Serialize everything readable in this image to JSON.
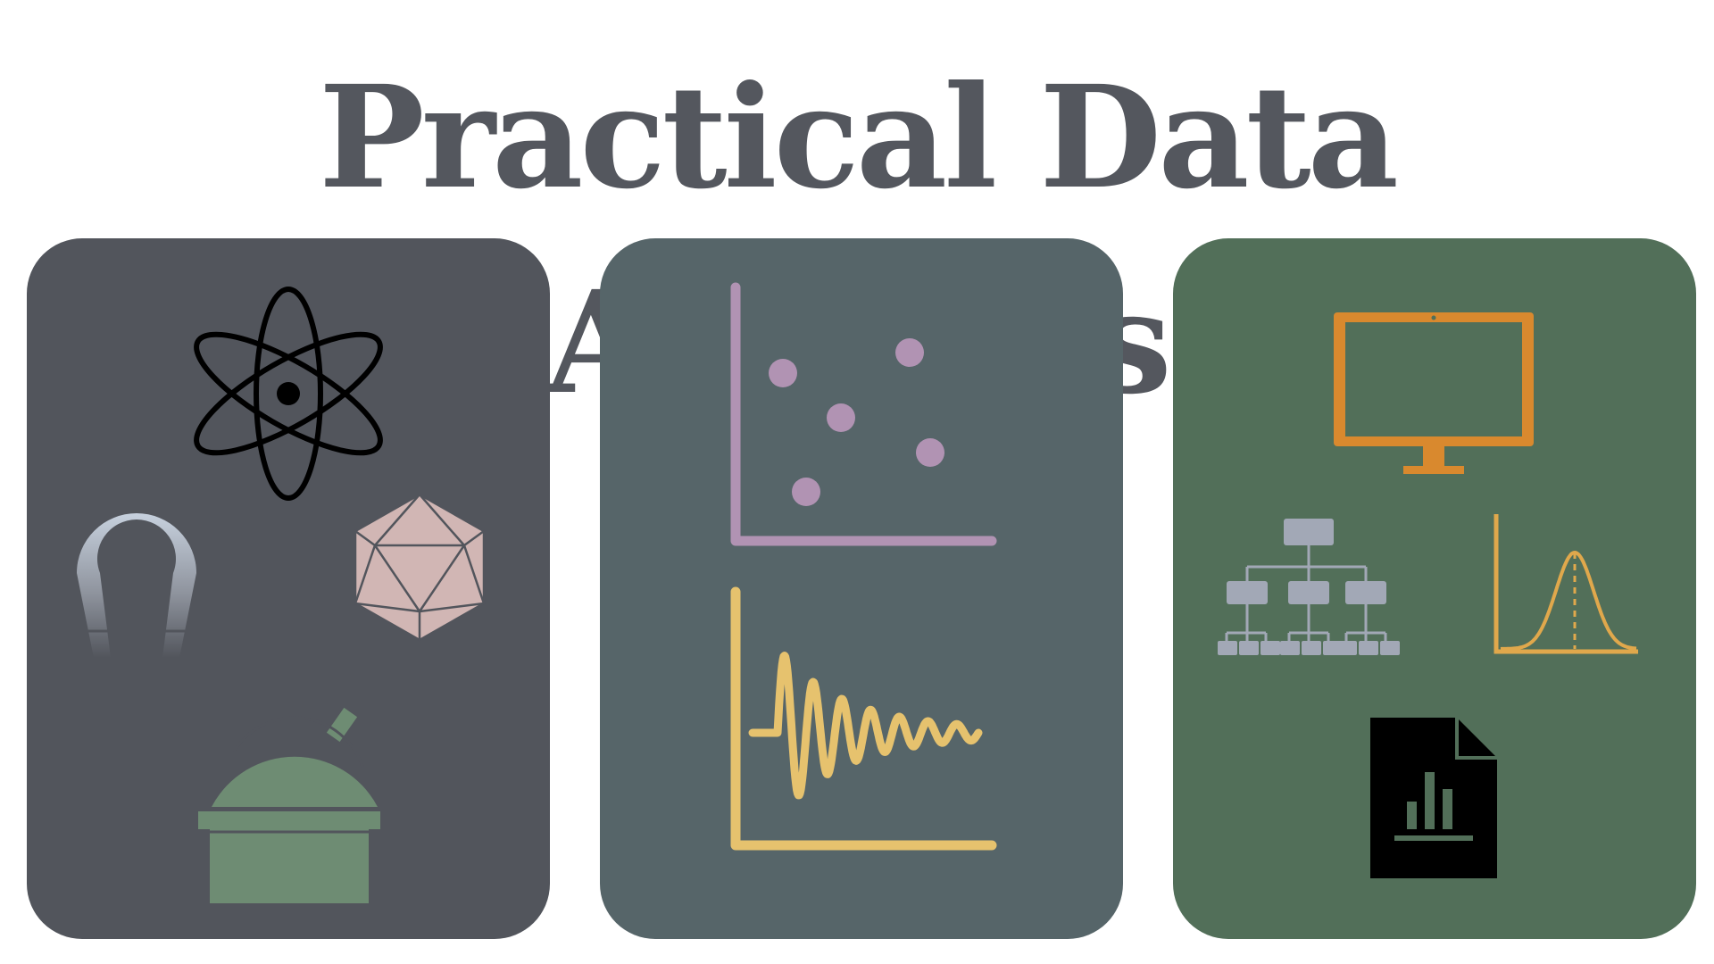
{
  "title": "Practical Data Analysis",
  "colors": {
    "title": "#54575e",
    "panel_left": "#52555c",
    "panel_middle": "#566569",
    "panel_right": "#526f59",
    "scatter_points": "#b193b3",
    "scatter_axes": "#b193b3",
    "signal": "#e6c26e",
    "monitor": "#d9892e",
    "hierarchy": "#a2a8b6",
    "distribution": "#e0a84c",
    "icosahedron": "#d1b6b4",
    "observatory": "#6e8c73",
    "atom": "#000000"
  },
  "panels": [
    {
      "id": "physics",
      "icons": [
        "atom-icon",
        "magnet-icon",
        "icosahedron-icon",
        "observatory-icon"
      ]
    },
    {
      "id": "plots",
      "icons": [
        "scatter-plot-icon",
        "damped-oscillation-icon"
      ]
    },
    {
      "id": "tools",
      "icons": [
        "monitor-icon",
        "hierarchy-icon",
        "normal-distribution-icon",
        "report-document-icon"
      ]
    }
  ]
}
